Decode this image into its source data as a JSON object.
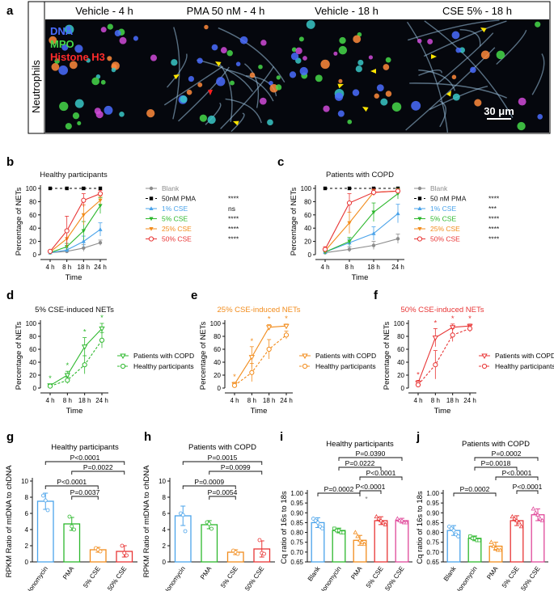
{
  "panel_letters": {
    "a": "a",
    "b": "b",
    "c": "c",
    "d": "d",
    "e": "e",
    "f": "f",
    "g": "g",
    "h": "h",
    "i": "i",
    "j": "j"
  },
  "micrograph": {
    "side_label": "Neutrophils",
    "stain_labels": [
      {
        "text": "DNA",
        "color": "#4a6cff"
      },
      {
        "text": "MPO",
        "color": "#46d84a"
      },
      {
        "text": "Histone H3",
        "color": "#ff2b2b"
      }
    ],
    "columns": [
      "Vehicle - 4 h",
      "PMA 50 nM - 4 h",
      "Vehicle - 18 h",
      "CSE 5% - 18 h"
    ],
    "scale_bar": "30 μm"
  },
  "significance": {
    "stars": "****",
    "three": "***",
    "ns": "ns",
    "single": "*"
  },
  "colors": {
    "blank": "#8c8c8c",
    "pma": "#000000",
    "cse1": "#4aa3ea",
    "cse5": "#2db82d",
    "cse25": "#f28c1c",
    "cse50": "#e83535",
    "iono": "#4aa3ea",
    "pink": "#e0489a"
  },
  "chart_data": [
    {
      "id": "b",
      "type": "line",
      "title": "Healthy participants",
      "xlabel": "Time",
      "ylabel": "Percentage of NETs",
      "categories": [
        "4 h",
        "8 h",
        "18 h",
        "24 h"
      ],
      "ylim": [
        0,
        100
      ],
      "yticks": [
        0,
        20,
        40,
        60,
        80,
        100
      ],
      "legend_position": "right",
      "series": [
        {
          "name": "Blank",
          "values": [
            3,
            5,
            10,
            18
          ],
          "sig": "",
          "err": [
            1,
            2,
            5,
            4
          ]
        },
        {
          "name": "50nM PMA",
          "values": [
            100,
            100,
            100,
            100
          ],
          "sig": "****",
          "err": [
            0,
            0,
            0,
            0
          ]
        },
        {
          "name": "1% CSE",
          "values": [
            3,
            7,
            20,
            38
          ],
          "sig": "ns",
          "err": [
            1,
            3,
            8,
            10
          ]
        },
        {
          "name": "5% CSE",
          "values": [
            3,
            12,
            36,
            74
          ],
          "sig": "****",
          "err": [
            1,
            5,
            14,
            12
          ]
        },
        {
          "name": "25% CSE",
          "values": [
            4,
            24,
            60,
            82
          ],
          "sig": "****",
          "err": [
            2,
            14,
            15,
            6
          ]
        },
        {
          "name": "50% CSE",
          "values": [
            5,
            36,
            82,
            92
          ],
          "sig": "****",
          "err": [
            2,
            22,
            10,
            5
          ]
        }
      ]
    },
    {
      "id": "c",
      "type": "line",
      "title": "Patients with COPD",
      "xlabel": "Time",
      "ylabel": "Percentage of NETs",
      "categories": [
        "4 h",
        "8 h",
        "18 h",
        "24 h"
      ],
      "ylim": [
        0,
        100
      ],
      "yticks": [
        0,
        20,
        40,
        60,
        80,
        100
      ],
      "legend_position": "right",
      "series": [
        {
          "name": "Blank",
          "values": [
            3,
            8,
            14,
            24
          ],
          "sig": "",
          "err": [
            2,
            4,
            6,
            7
          ]
        },
        {
          "name": "50 nM PMA",
          "values": [
            100,
            100,
            100,
            100
          ],
          "sig": "****",
          "err": [
            0,
            0,
            0,
            0
          ]
        },
        {
          "name": "1% CSE",
          "values": [
            4,
            18,
            32,
            62
          ],
          "sig": "***",
          "err": [
            2,
            6,
            10,
            14
          ]
        },
        {
          "name": "5% CSE",
          "values": [
            4,
            20,
            64,
            92
          ],
          "sig": "****",
          "err": [
            2,
            6,
            14,
            8
          ]
        },
        {
          "name": "25% CSE",
          "values": [
            6,
            48,
            94,
            96
          ],
          "sig": "****",
          "err": [
            3,
            16,
            4,
            3
          ]
        },
        {
          "name": "50% CSE",
          "values": [
            8,
            78,
            94,
            96
          ],
          "sig": "****",
          "err": [
            4,
            14,
            5,
            3
          ]
        }
      ]
    },
    {
      "id": "d",
      "type": "line",
      "title": "5% CSE-induced NETs",
      "xlabel": "Time",
      "ylabel": "Percentage of NETs",
      "categories": [
        "4 h",
        "8 h",
        "18 h",
        "24 h"
      ],
      "ylim": [
        0,
        100
      ],
      "yticks": [
        0,
        20,
        40,
        60,
        80,
        100
      ],
      "marker": "*",
      "legend_position": "bottom-right",
      "series": [
        {
          "name": "Patients with COPD",
          "values": [
            4,
            20,
            64,
            92
          ],
          "err": [
            2,
            6,
            14,
            8
          ]
        },
        {
          "name": "Healthy participants",
          "values": [
            3,
            12,
            36,
            74
          ],
          "err": [
            1,
            5,
            14,
            12
          ]
        }
      ]
    },
    {
      "id": "e",
      "type": "line",
      "title": "25% CSE-induced NETs",
      "xlabel": "Time",
      "ylabel": "Percentage of NETs",
      "categories": [
        "4 h",
        "8 h",
        "18 h",
        "24 h"
      ],
      "ylim": [
        0,
        100
      ],
      "yticks": [
        0,
        20,
        40,
        60,
        80,
        100
      ],
      "marker": "*",
      "legend_position": "bottom-right",
      "series": [
        {
          "name": "Patients with COPD",
          "values": [
            6,
            48,
            94,
            96
          ],
          "err": [
            3,
            16,
            4,
            3
          ]
        },
        {
          "name": "Healthy participants",
          "values": [
            4,
            24,
            60,
            82
          ],
          "err": [
            2,
            14,
            15,
            6
          ]
        }
      ]
    },
    {
      "id": "f",
      "type": "line",
      "title": "50% CSE-induced NETs",
      "xlabel": "Time",
      "ylabel": "Percentage of NETs",
      "categories": [
        "4 h",
        "8 h",
        "18 h",
        "24 h"
      ],
      "ylim": [
        0,
        100
      ],
      "yticks": [
        0,
        20,
        40,
        60,
        80,
        100
      ],
      "marker": "*",
      "legend_position": "bottom-right",
      "series": [
        {
          "name": "Patients with COPD",
          "values": [
            8,
            78,
            94,
            96
          ],
          "err": [
            4,
            14,
            5,
            3
          ]
        },
        {
          "name": "Healthy participants",
          "values": [
            5,
            36,
            82,
            92
          ],
          "err": [
            2,
            22,
            10,
            5
          ]
        }
      ]
    },
    {
      "id": "g",
      "type": "bar",
      "title": "Healthy participants",
      "ylabel": "RPKM Ratio of mtDNA to chDNA",
      "categories": [
        "Ionomycin",
        "PMA",
        "5% CSE",
        "50% CSE"
      ],
      "ylim": [
        0,
        10
      ],
      "yticks": [
        0,
        2,
        4,
        6,
        8,
        10
      ],
      "values": [
        7.5,
        4.7,
        1.5,
        1.3
      ],
      "err": [
        1.0,
        0.8,
        0.3,
        0.7
      ],
      "points": [
        [
          8.2,
          7.6,
          6.4
        ],
        [
          5.6,
          4.4,
          4.0
        ],
        [
          1.7,
          1.5,
          1.3
        ],
        [
          2.0,
          1.1,
          0.8
        ]
      ],
      "comparisons": [
        {
          "label": "P<0.0001",
          "from": 0,
          "to": 3
        },
        {
          "label": "P=0.0022",
          "from": 1,
          "to": 3
        },
        {
          "label": "P<0.0001",
          "from": 0,
          "to": 2
        },
        {
          "label": "P=0.0037",
          "from": 1,
          "to": 2
        }
      ]
    },
    {
      "id": "h",
      "type": "bar",
      "title": "Patients with COPD",
      "ylabel": "RPKM Ratio of mtDNA to chDNA",
      "categories": [
        "Ionomycin",
        "PMA",
        "5% CSE",
        "50% CSE"
      ],
      "ylim": [
        0,
        10
      ],
      "yticks": [
        0,
        2,
        4,
        6,
        8,
        10
      ],
      "values": [
        5.7,
        4.6,
        1.2,
        1.6
      ],
      "err": [
        1.2,
        0.5,
        0.3,
        1.0
      ],
      "points": [
        [
          6.0,
          5.8,
          3.8
        ],
        [
          4.9,
          4.7,
          4.1
        ],
        [
          1.4,
          1.2,
          1.0
        ],
        [
          2.7,
          1.1,
          1.0
        ]
      ],
      "comparisons": [
        {
          "label": "P=0.0015",
          "from": 0,
          "to": 3
        },
        {
          "label": "P=0.0099",
          "from": 1,
          "to": 3
        },
        {
          "label": "P=0.0009",
          "from": 0,
          "to": 2
        },
        {
          "label": "P=0.0054",
          "from": 1,
          "to": 2
        }
      ]
    },
    {
      "id": "i",
      "type": "bar",
      "title": "Healthy participants",
      "ylabel": "Cq ratio of 16s to 18s",
      "categories": [
        "Blank",
        "Ionomycin",
        "PMA",
        "5% CSE",
        "50% CSE"
      ],
      "ylim": [
        0.65,
        1.0
      ],
      "yticks": [
        0.65,
        0.7,
        0.75,
        0.8,
        0.85,
        0.9,
        0.95,
        1.0
      ],
      "values": [
        0.85,
        0.81,
        0.76,
        0.86,
        0.86
      ],
      "err": [
        0.025,
        0.012,
        0.025,
        0.02,
        0.012
      ],
      "points": [
        [
          0.87,
          0.86,
          0.85,
          0.83,
          0.82
        ],
        [
          0.82,
          0.81,
          0.81,
          0.8,
          0.8
        ],
        [
          0.8,
          0.78,
          0.76,
          0.75,
          0.74
        ],
        [
          0.88,
          0.87,
          0.86,
          0.85,
          0.84
        ],
        [
          0.87,
          0.86,
          0.86,
          0.85,
          0.85
        ]
      ],
      "asterisk_label": "*",
      "comparisons": [
        {
          "label": "P=0.0390",
          "from": 1,
          "to": 4
        },
        {
          "label": "P=0.0222",
          "from": 1,
          "to": 3
        },
        {
          "label": "P<0.0001",
          "from": 2,
          "to": 4
        },
        {
          "label": "P=0.0002",
          "from": 0,
          "to": 2
        },
        {
          "label": "P<0.0001",
          "from": 2,
          "to": 3
        }
      ]
    },
    {
      "id": "j",
      "type": "bar",
      "title": "Patients with COPD",
      "ylabel": "Cq ratio of 16s to 18s",
      "categories": [
        "Blank",
        "Ionomycin",
        "PMA",
        "5% CSE",
        "50% CSE"
      ],
      "ylim": [
        0.65,
        1.0
      ],
      "yticks": [
        0.65,
        0.7,
        0.75,
        0.8,
        0.85,
        0.9,
        0.95,
        1.0
      ],
      "values": [
        0.81,
        0.77,
        0.73,
        0.86,
        0.89
      ],
      "err": [
        0.025,
        0.012,
        0.02,
        0.025,
        0.03
      ],
      "points": [
        [
          0.83,
          0.82,
          0.81,
          0.79,
          0.78
        ],
        [
          0.78,
          0.77,
          0.77,
          0.76,
          0.76
        ],
        [
          0.75,
          0.73,
          0.72,
          0.71,
          0.71
        ],
        [
          0.88,
          0.87,
          0.86,
          0.85,
          0.83
        ],
        [
          0.92,
          0.9,
          0.89,
          0.87,
          0.86
        ]
      ],
      "comparisons": [
        {
          "label": "P=0.0002",
          "from": 1,
          "to": 4
        },
        {
          "label": "P=0.0018",
          "from": 1,
          "to": 3
        },
        {
          "label": "P<0.0001",
          "from": 2,
          "to": 4
        },
        {
          "label": "P=0.0002",
          "from": 0,
          "to": 2
        },
        {
          "label": "P<0.0001",
          "from": 3,
          "to": 4
        }
      ]
    }
  ]
}
